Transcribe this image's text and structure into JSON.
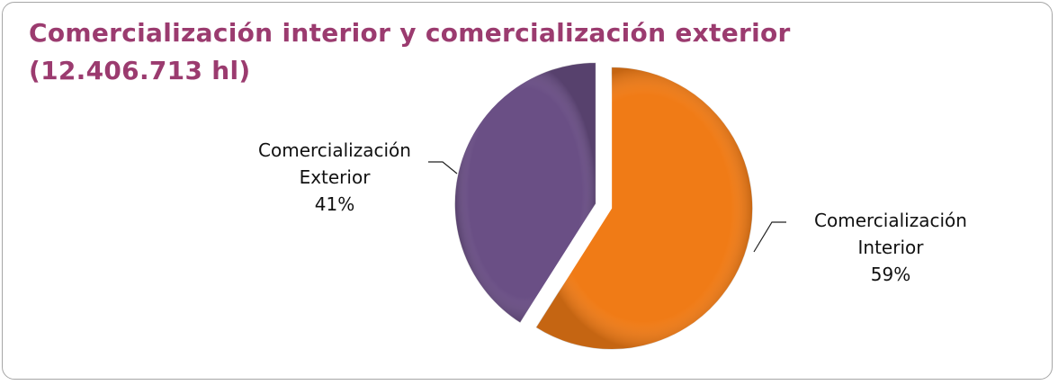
{
  "chart_data": {
    "type": "pie",
    "title": "Comercialización interior y comercialización exterior",
    "subtitle": "(12.406.713 hl)",
    "categories": [
      "Comercialización Interior",
      "Comercialización Exterior"
    ],
    "values": [
      59,
      41
    ],
    "value_labels": [
      "59%",
      "41%"
    ],
    "colors": [
      "#f07b16",
      "#6a4f85"
    ]
  }
}
